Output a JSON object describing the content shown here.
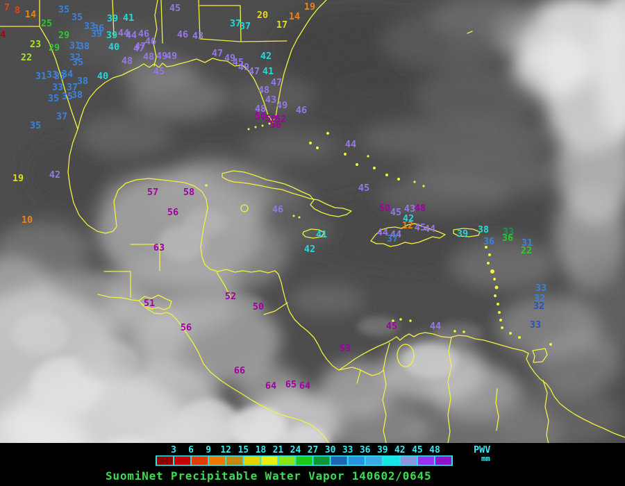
{
  "palette": {
    "dr": "#b40000",
    "ro": "#e04414",
    "or": "#f08214",
    "ye": "#e8d820",
    "yg": "#aae428",
    "gr": "#2ec82e",
    "dg": "#149650",
    "bl": "#3c82dc",
    "nv": "#2a54b4",
    "cy": "#26d8d8",
    "lv": "#9678e8",
    "mg": "#a000a0",
    "coast": "#f2f240",
    "tick_text": "#38ecf4",
    "title_text": "#3cdc50"
  },
  "map": {
    "stations": [
      [
        "7",
        10,
        11,
        "ro"
      ],
      [
        "8",
        25,
        15,
        "ro"
      ],
      [
        "14",
        44,
        21,
        "or"
      ],
      [
        "4",
        4,
        50,
        "dr"
      ],
      [
        "35",
        92,
        14,
        "bl"
      ],
      [
        "35",
        111,
        25,
        "bl"
      ],
      [
        "25",
        67,
        34,
        "gr"
      ],
      [
        "33",
        129,
        38,
        "bl"
      ],
      [
        "36",
        142,
        41,
        "bl"
      ],
      [
        "39",
        139,
        49,
        "bl"
      ],
      [
        "39",
        162,
        27,
        "cy"
      ],
      [
        "41",
        185,
        26,
        "cy"
      ],
      [
        "39",
        161,
        51,
        "cy"
      ],
      [
        "29",
        92,
        51,
        "gr"
      ],
      [
        "23",
        51,
        64,
        "yg"
      ],
      [
        "29",
        78,
        69,
        "gr"
      ],
      [
        "22",
        38,
        83,
        "yg"
      ],
      [
        "31",
        108,
        66,
        "bl"
      ],
      [
        "38",
        121,
        67,
        "bl"
      ],
      [
        "40",
        164,
        68,
        "cy"
      ],
      [
        "32",
        108,
        83,
        "bl"
      ],
      [
        "35",
        112,
        90,
        "bl"
      ],
      [
        "44",
        178,
        48,
        "lv"
      ],
      [
        "44",
        189,
        51,
        "lv"
      ],
      [
        "46",
        207,
        49,
        "lv"
      ],
      [
        "46",
        217,
        60,
        "lv"
      ],
      [
        "47",
        202,
        67,
        "lv"
      ],
      [
        "48",
        183,
        88,
        "lv"
      ],
      [
        "31",
        59,
        110,
        "bl"
      ],
      [
        "33",
        75,
        108,
        "bl"
      ],
      [
        "33",
        86,
        110,
        "bl"
      ],
      [
        "34",
        97,
        107,
        "bl"
      ],
      [
        "40",
        148,
        110,
        "cy"
      ],
      [
        "38",
        119,
        117,
        "bl"
      ],
      [
        "33",
        83,
        126,
        "bl"
      ],
      [
        "37",
        104,
        126,
        "bl"
      ],
      [
        "35",
        77,
        142,
        "bl"
      ],
      [
        "35",
        97,
        139,
        "bl"
      ],
      [
        "38",
        111,
        137,
        "bl"
      ],
      [
        "37",
        89,
        168,
        "bl"
      ],
      [
        "35",
        51,
        181,
        "bl"
      ],
      [
        "47",
        200,
        70,
        "lv"
      ],
      [
        "48",
        214,
        82,
        "lv"
      ],
      [
        "49",
        233,
        81,
        "lv"
      ],
      [
        "49",
        247,
        81,
        "lv"
      ],
      [
        "45",
        229,
        103,
        "lv"
      ],
      [
        "45",
        252,
        12,
        "lv"
      ],
      [
        "46",
        263,
        50,
        "lv"
      ],
      [
        "43",
        285,
        52,
        "lv"
      ],
      [
        "37",
        339,
        34,
        "cy"
      ],
      [
        "37",
        353,
        38,
        "cy"
      ],
      [
        "20",
        378,
        22,
        "ye"
      ],
      [
        "17",
        406,
        36,
        "ye"
      ],
      [
        "14",
        424,
        24,
        "or"
      ],
      [
        "19",
        446,
        10,
        "or"
      ],
      [
        "47",
        313,
        77,
        "lv"
      ],
      [
        "49",
        331,
        84,
        "lv"
      ],
      [
        "45",
        343,
        90,
        "lv"
      ],
      [
        "49",
        351,
        97,
        "lv"
      ],
      [
        "42",
        383,
        81,
        "cy"
      ],
      [
        "47",
        366,
        103,
        "lv"
      ],
      [
        "41",
        386,
        103,
        "cy"
      ],
      [
        "47",
        398,
        119,
        "lv"
      ],
      [
        "48",
        380,
        130,
        "lv"
      ],
      [
        "43",
        390,
        144,
        "lv"
      ],
      [
        "49",
        406,
        152,
        "lv"
      ],
      [
        "48",
        375,
        157,
        "lv"
      ],
      [
        "46",
        434,
        159,
        "lv"
      ],
      [
        "50",
        375,
        168,
        "mg"
      ],
      [
        "50",
        390,
        171,
        "mg"
      ],
      [
        "52",
        404,
        172,
        "mg"
      ],
      [
        "56",
        397,
        180,
        "mg"
      ],
      [
        "19",
        26,
        257,
        "ye"
      ],
      [
        "42",
        79,
        252,
        "lv"
      ],
      [
        "10",
        39,
        317,
        "or"
      ],
      [
        "44",
        505,
        208,
        "lv"
      ],
      [
        "45",
        524,
        271,
        "lv"
      ],
      [
        "46",
        400,
        302,
        "lv"
      ],
      [
        "41",
        463,
        338,
        "cy"
      ],
      [
        "42",
        446,
        359,
        "cy"
      ],
      [
        "50",
        554,
        300,
        "mg"
      ],
      [
        "45",
        570,
        306,
        "lv"
      ],
      [
        "43",
        590,
        301,
        "lv"
      ],
      [
        "48",
        605,
        300,
        "mg"
      ],
      [
        "42",
        588,
        315,
        "cy"
      ],
      [
        "12",
        587,
        325,
        "or"
      ],
      [
        "45",
        605,
        328,
        "lv"
      ],
      [
        "44",
        619,
        330,
        "lv"
      ],
      [
        "44",
        551,
        335,
        "lv"
      ],
      [
        "44",
        570,
        338,
        "lv"
      ],
      [
        "37",
        565,
        344,
        "bl"
      ],
      [
        "39",
        666,
        337,
        "cy"
      ],
      [
        "38",
        696,
        331,
        "cy"
      ],
      [
        "36",
        704,
        348,
        "bl"
      ],
      [
        "33",
        732,
        334,
        "dg"
      ],
      [
        "36",
        731,
        343,
        "gr"
      ],
      [
        "31",
        759,
        350,
        "bl"
      ],
      [
        "22",
        758,
        361,
        "gr"
      ],
      [
        "33",
        779,
        415,
        "bl"
      ],
      [
        "32",
        777,
        430,
        "bl"
      ],
      [
        "32",
        776,
        441,
        "nv"
      ],
      [
        "33",
        771,
        468,
        "nv"
      ],
      [
        "44",
        627,
        470,
        "lv"
      ],
      [
        "45",
        564,
        470,
        "mg"
      ],
      [
        "57",
        220,
        277,
        "mg"
      ],
      [
        "58",
        272,
        277,
        "mg"
      ],
      [
        "56",
        249,
        306,
        "mg"
      ],
      [
        "63",
        229,
        357,
        "mg"
      ],
      [
        "51",
        215,
        437,
        "mg"
      ],
      [
        "52",
        332,
        427,
        "mg"
      ],
      [
        "50",
        372,
        442,
        "mg"
      ],
      [
        "56",
        268,
        472,
        "mg"
      ],
      [
        "66",
        345,
        534,
        "mg"
      ],
      [
        "64",
        390,
        556,
        "mg"
      ],
      [
        "65",
        419,
        554,
        "mg"
      ],
      [
        "64",
        439,
        556,
        "mg"
      ],
      [
        "53",
        497,
        502,
        "mg"
      ]
    ]
  },
  "scale": {
    "ticks": [
      "3",
      "6",
      "9",
      "12",
      "15",
      "18",
      "21",
      "24",
      "27",
      "30",
      "33",
      "36",
      "39",
      "42",
      "45",
      "48"
    ],
    "colors": [
      "#8c0000",
      "#c80000",
      "#e03c00",
      "#f07800",
      "#be8a14",
      "#e6d200",
      "#ecec14",
      "#8ce414",
      "#1ec814",
      "#0f9632",
      "#1e64b4",
      "#2892e0",
      "#3caae8",
      "#14e6e6",
      "#8c96e0",
      "#9632f0",
      "#8c14cc"
    ],
    "unit_label": "PWV",
    "unit_sub": "mm"
  },
  "footer": {
    "title": "SuomiNet Precipitable Water Vapor 140602/0645"
  }
}
